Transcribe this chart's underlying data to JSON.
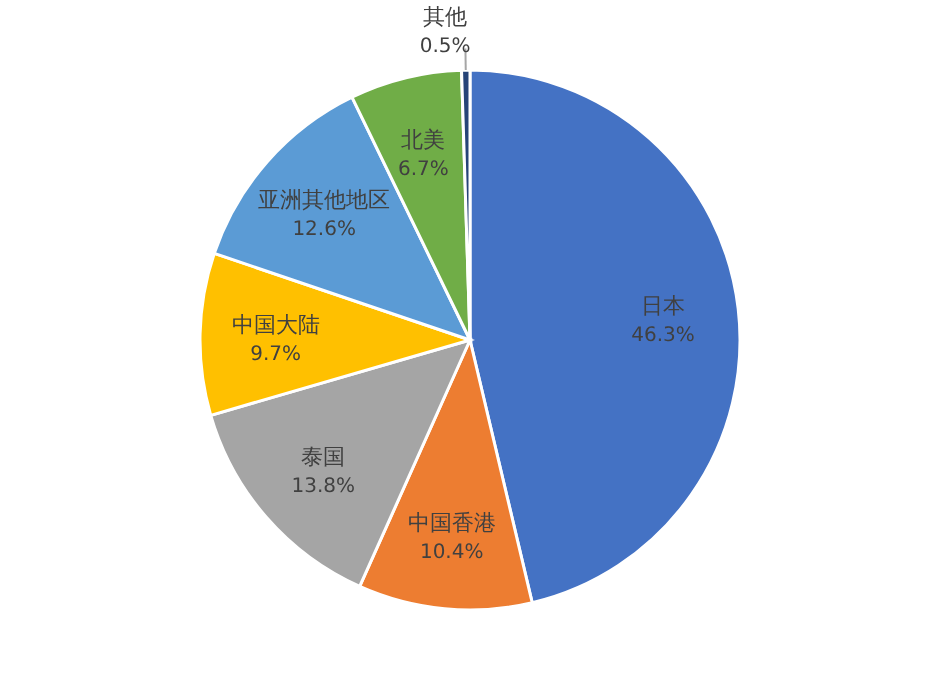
{
  "chart_data": {
    "type": "pie",
    "categories": [
      "日本",
      "中国香港",
      "泰国",
      "中国大陆",
      "亚洲其他地区",
      "北美",
      "其他"
    ],
    "values": [
      46.3,
      10.4,
      13.8,
      9.7,
      12.6,
      6.7,
      0.5
    ],
    "value_labels": [
      "46.3%",
      "10.4%",
      "13.8%",
      "9.7%",
      "12.6%",
      "6.7%",
      "0.5%"
    ],
    "colors": [
      "#4472c4",
      "#ed7d31",
      "#a5a5a5",
      "#ffc000",
      "#5b9bd5",
      "#70ad47",
      "#264478"
    ]
  }
}
